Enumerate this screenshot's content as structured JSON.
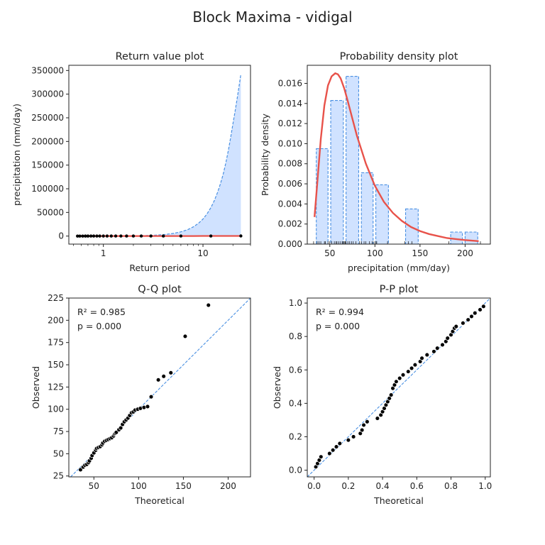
{
  "figure": {
    "title": "Block Maxima - vidigal"
  },
  "colors": {
    "fit_line": "#e8524a",
    "dashed": "#4a90e2",
    "fill": "#d0e2ff",
    "points": "#000000",
    "axis": "#222222"
  },
  "chart_data": [
    {
      "id": "return",
      "type": "line",
      "title": "Return value plot",
      "xlabel": "Return period",
      "ylabel": "precipitation (mm/day)",
      "xscale": "log",
      "xlim": [
        0.45,
        30
      ],
      "ylim": [
        -17000,
        361000
      ],
      "xticks": [
        1,
        10
      ],
      "xticklabels": [
        "1",
        "10"
      ],
      "yticks": [
        0,
        50000,
        100000,
        150000,
        200000,
        250000,
        300000,
        350000
      ],
      "yticklabels": [
        "0",
        "50000",
        "100000",
        "150000",
        "200000",
        "250000",
        "300000",
        "350000"
      ],
      "fit_x": [
        0.55,
        0.8,
        1,
        2,
        4,
        6,
        8,
        10,
        12,
        15,
        18,
        21,
        24
      ],
      "fit_y": [
        32,
        48,
        58,
        92,
        126,
        148,
        164,
        178,
        190,
        205,
        218,
        230,
        240
      ],
      "ci_upper_x": [
        0.55,
        1,
        2,
        3,
        4,
        5,
        6,
        7,
        8,
        9,
        10,
        11,
        12,
        13,
        14,
        15,
        16,
        17,
        18,
        19,
        20,
        21,
        22,
        23,
        24
      ],
      "ci_upper_y": [
        0,
        100,
        500,
        1500,
        3000,
        5500,
        9000,
        13500,
        19500,
        27000,
        36000,
        47000,
        60000,
        75000,
        92000,
        111000,
        132000,
        156000,
        182000,
        210000,
        238000,
        264000,
        290000,
        316000,
        342000
      ],
      "points_x": [
        0.55,
        0.58,
        0.62,
        0.66,
        0.7,
        0.75,
        0.8,
        0.86,
        0.92,
        1.0,
        1.09,
        1.2,
        1.33,
        1.5,
        1.71,
        2.0,
        2.4,
        3.0,
        4.0,
        6.0,
        12.0,
        24.0
      ],
      "points_y": [
        32,
        36,
        40,
        45,
        50,
        56,
        60,
        64,
        67,
        70,
        75,
        80,
        86,
        92,
        98,
        101,
        114,
        133,
        141,
        182,
        217,
        240
      ]
    },
    {
      "id": "pdf",
      "type": "bar",
      "title": "Probability density plot",
      "xlabel": "precipitation (mm/day)",
      "ylabel": "Probability density",
      "xlim": [
        25,
        228
      ],
      "ylim": [
        0,
        0.0178
      ],
      "xticks": [
        50,
        100,
        150,
        200
      ],
      "xticklabels": [
        "50",
        "100",
        "150",
        "200"
      ],
      "yticks": [
        0,
        0.002,
        0.004,
        0.006,
        0.008,
        0.01,
        0.012,
        0.014,
        0.016
      ],
      "yticklabels": [
        "0.000",
        "0.002",
        "0.004",
        "0.006",
        "0.008",
        "0.010",
        "0.012",
        "0.014",
        "0.016"
      ],
      "bins": [
        {
          "x0": 35,
          "x1": 48,
          "h": 0.0095
        },
        {
          "x0": 51,
          "x1": 65,
          "h": 0.0143
        },
        {
          "x0": 68,
          "x1": 82,
          "h": 0.0167
        },
        {
          "x0": 85,
          "x1": 98,
          "h": 0.0071
        },
        {
          "x0": 101,
          "x1": 115,
          "h": 0.0059
        },
        {
          "x0": 134,
          "x1": 148,
          "h": 0.0035
        },
        {
          "x0": 184,
          "x1": 197,
          "h": 0.0012
        },
        {
          "x0": 200,
          "x1": 214,
          "h": 0.0012
        }
      ],
      "pdf_x": [
        33,
        36,
        40,
        44,
        48,
        52,
        56,
        59,
        62,
        66,
        70,
        75,
        80,
        90,
        100,
        110,
        120,
        130,
        140,
        150,
        160,
        170,
        180,
        190,
        200,
        215
      ],
      "pdf_y": [
        0.0027,
        0.006,
        0.0105,
        0.0138,
        0.0158,
        0.0167,
        0.017,
        0.0169,
        0.0165,
        0.0155,
        0.0142,
        0.0125,
        0.0108,
        0.008,
        0.0058,
        0.0042,
        0.0031,
        0.0023,
        0.0017,
        0.0013,
        0.001,
        0.0008,
        0.0006,
        0.0005,
        0.0004,
        0.0003
      ],
      "rug_x": [
        32,
        36,
        38,
        40,
        44,
        45,
        48,
        50,
        52,
        55,
        57,
        58,
        60,
        62,
        64,
        65,
        66,
        67,
        68,
        70,
        72,
        74,
        76,
        79,
        83,
        85,
        88,
        90,
        94,
        97,
        99,
        101,
        102,
        114,
        133,
        137,
        141,
        182,
        217
      ]
    },
    {
      "id": "qq",
      "type": "scatter",
      "title": "Q-Q plot",
      "xlabel": "Theoretical",
      "ylabel": "Observed",
      "annotation_r2": "R² = 0.985",
      "annotation_p": "p = 0.000",
      "xlim": [
        22,
        225
      ],
      "ylim": [
        24,
        225
      ],
      "xticks": [
        50,
        100,
        150,
        200
      ],
      "xticklabels": [
        "50",
        "100",
        "150",
        "200"
      ],
      "yticks": [
        25,
        50,
        75,
        100,
        125,
        150,
        175,
        200,
        225
      ],
      "yticklabels": [
        "25",
        "50",
        "75",
        "100",
        "125",
        "150",
        "175",
        "200",
        "225"
      ],
      "points": [
        [
          35,
          32
        ],
        [
          38,
          35
        ],
        [
          40,
          37
        ],
        [
          42,
          38
        ],
        [
          44,
          40
        ],
        [
          45,
          42
        ],
        [
          47,
          45
        ],
        [
          48,
          48
        ],
        [
          50,
          51
        ],
        [
          52,
          54
        ],
        [
          53,
          56
        ],
        [
          55,
          57
        ],
        [
          57,
          58
        ],
        [
          59,
          60
        ],
        [
          60,
          62
        ],
        [
          62,
          64
        ],
        [
          64,
          65
        ],
        [
          66,
          66
        ],
        [
          68,
          67
        ],
        [
          70,
          68
        ],
        [
          72,
          70
        ],
        [
          73,
          72
        ],
        [
          74,
          73
        ],
        [
          75,
          74
        ],
        [
          78,
          77
        ],
        [
          80,
          79
        ],
        [
          82,
          83
        ],
        [
          84,
          86
        ],
        [
          86,
          88
        ],
        [
          88,
          90
        ],
        [
          90,
          93
        ],
        [
          92,
          96
        ],
        [
          94,
          97
        ],
        [
          96,
          99
        ],
        [
          99,
          100
        ],
        [
          102,
          101
        ],
        [
          106,
          102
        ],
        [
          110,
          103
        ],
        [
          114,
          114
        ],
        [
          122,
          133
        ],
        [
          128,
          137
        ],
        [
          136,
          141
        ],
        [
          152,
          182
        ],
        [
          178,
          217
        ]
      ]
    },
    {
      "id": "pp",
      "type": "scatter",
      "title": "P-P plot",
      "xlabel": "Theoretical",
      "ylabel": "Observed",
      "annotation_r2": "R² = 0.994",
      "annotation_p": "p = 0.000",
      "xlim": [
        -0.04,
        1.03
      ],
      "ylim": [
        -0.04,
        1.03
      ],
      "xticks": [
        0,
        0.2,
        0.4,
        0.6,
        0.8,
        1.0
      ],
      "xticklabels": [
        "0.0",
        "0.2",
        "0.4",
        "0.6",
        "0.8",
        "1.0"
      ],
      "yticks": [
        0,
        0.2,
        0.4,
        0.6,
        0.8,
        1.0
      ],
      "yticklabels": [
        "0.0",
        "0.2",
        "0.4",
        "0.6",
        "0.8",
        "1.0"
      ],
      "points": [
        [
          0.01,
          0.02
        ],
        [
          0.02,
          0.04
        ],
        [
          0.03,
          0.06
        ],
        [
          0.04,
          0.08
        ],
        [
          0.09,
          0.1
        ],
        [
          0.11,
          0.12
        ],
        [
          0.13,
          0.14
        ],
        [
          0.15,
          0.16
        ],
        [
          0.2,
          0.18
        ],
        [
          0.23,
          0.2
        ],
        [
          0.27,
          0.22
        ],
        [
          0.28,
          0.24
        ],
        [
          0.29,
          0.27
        ],
        [
          0.31,
          0.29
        ],
        [
          0.37,
          0.31
        ],
        [
          0.39,
          0.33
        ],
        [
          0.4,
          0.35
        ],
        [
          0.41,
          0.37
        ],
        [
          0.42,
          0.39
        ],
        [
          0.43,
          0.41
        ],
        [
          0.44,
          0.43
        ],
        [
          0.45,
          0.45
        ],
        [
          0.46,
          0.49
        ],
        [
          0.47,
          0.51
        ],
        [
          0.48,
          0.53
        ],
        [
          0.5,
          0.55
        ],
        [
          0.52,
          0.57
        ],
        [
          0.55,
          0.59
        ],
        [
          0.57,
          0.61
        ],
        [
          0.59,
          0.63
        ],
        [
          0.62,
          0.65
        ],
        [
          0.63,
          0.67
        ],
        [
          0.66,
          0.69
        ],
        [
          0.7,
          0.71
        ],
        [
          0.72,
          0.73
        ],
        [
          0.75,
          0.75
        ],
        [
          0.77,
          0.77
        ],
        [
          0.78,
          0.79
        ],
        [
          0.8,
          0.81
        ],
        [
          0.81,
          0.83
        ],
        [
          0.82,
          0.85
        ],
        [
          0.83,
          0.86
        ],
        [
          0.87,
          0.88
        ],
        [
          0.9,
          0.9
        ],
        [
          0.92,
          0.92
        ],
        [
          0.94,
          0.94
        ],
        [
          0.97,
          0.96
        ],
        [
          0.99,
          0.98
        ]
      ]
    }
  ]
}
